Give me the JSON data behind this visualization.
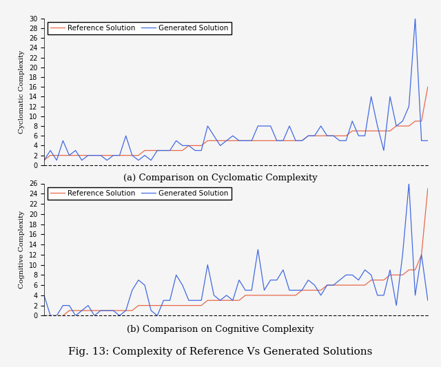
{
  "cyclomatic_ref": [
    1,
    2,
    2,
    2,
    2,
    2,
    2,
    2,
    2,
    2,
    2,
    2,
    2,
    2,
    2,
    2,
    3,
    3,
    3,
    3,
    3,
    3,
    3,
    4,
    4,
    4,
    5,
    5,
    5,
    5,
    5,
    5,
    5,
    5,
    5,
    5,
    5,
    5,
    5,
    5,
    5,
    5,
    6,
    6,
    6,
    6,
    6,
    6,
    6,
    7,
    7,
    7,
    7,
    7,
    7,
    7,
    8,
    8,
    8,
    9,
    9,
    16
  ],
  "cyclomatic_gen": [
    1,
    3,
    1,
    5,
    2,
    3,
    1,
    2,
    2,
    2,
    1,
    2,
    2,
    6,
    2,
    1,
    2,
    1,
    3,
    3,
    3,
    5,
    4,
    4,
    3,
    3,
    8,
    6,
    4,
    5,
    6,
    5,
    5,
    5,
    8,
    8,
    8,
    5,
    5,
    8,
    5,
    5,
    6,
    6,
    8,
    6,
    6,
    5,
    5,
    9,
    6,
    6,
    14,
    8,
    3,
    14,
    8,
    9,
    12,
    30,
    5,
    5
  ],
  "cognitive_ref": [
    0,
    0,
    0,
    0,
    1,
    1,
    1,
    1,
    1,
    1,
    1,
    1,
    1,
    1,
    1,
    2,
    2,
    2,
    2,
    2,
    2,
    2,
    2,
    2,
    2,
    2,
    3,
    3,
    3,
    3,
    3,
    3,
    4,
    4,
    4,
    4,
    4,
    4,
    4,
    4,
    4,
    5,
    5,
    5,
    5,
    6,
    6,
    6,
    6,
    6,
    6,
    6,
    7,
    7,
    7,
    8,
    8,
    8,
    9,
    9,
    12,
    25
  ],
  "cognitive_gen": [
    4,
    0,
    0,
    2,
    2,
    0,
    1,
    2,
    0,
    1,
    1,
    1,
    0,
    1,
    5,
    7,
    6,
    1,
    0,
    3,
    3,
    8,
    6,
    3,
    3,
    3,
    10,
    4,
    3,
    4,
    3,
    7,
    5,
    5,
    13,
    5,
    7,
    7,
    9,
    5,
    5,
    5,
    7,
    6,
    4,
    6,
    6,
    7,
    8,
    8,
    7,
    9,
    8,
    4,
    4,
    9,
    2,
    12,
    26,
    4,
    12,
    3
  ],
  "ref_color": "#e8684a",
  "gen_color": "#4169e1",
  "ref_label": "Reference Solution",
  "gen_label": "Generated Solution",
  "cyclomatic_ylabel": "Cyclomatic Complexity",
  "cognitive_ylabel": "Cognitive Complexity",
  "cyclomatic_ylim": [
    0,
    30
  ],
  "cognitive_ylim": [
    0,
    26
  ],
  "cyclomatic_yticks": [
    0,
    2,
    4,
    6,
    8,
    10,
    12,
    14,
    16,
    18,
    20,
    22,
    24,
    26,
    28,
    30
  ],
  "cognitive_yticks": [
    0,
    2,
    4,
    6,
    8,
    10,
    12,
    14,
    16,
    18,
    20,
    22,
    24,
    26
  ],
  "caption_a": "(a) Comparison on Cyclomatic Complexity",
  "caption_b": "(b) Comparison on Cognitive Complexity",
  "fig_caption": "Fig. 13: Complexity of Reference Vs Generated Solutions",
  "linewidth": 0.9,
  "legend_fontsize": 7.5,
  "ylabel_fontsize": 7.5,
  "caption_fontsize": 9.5,
  "fig_caption_fontsize": 11,
  "tick_fontsize": 7,
  "bg_color": "#f5f5f5"
}
